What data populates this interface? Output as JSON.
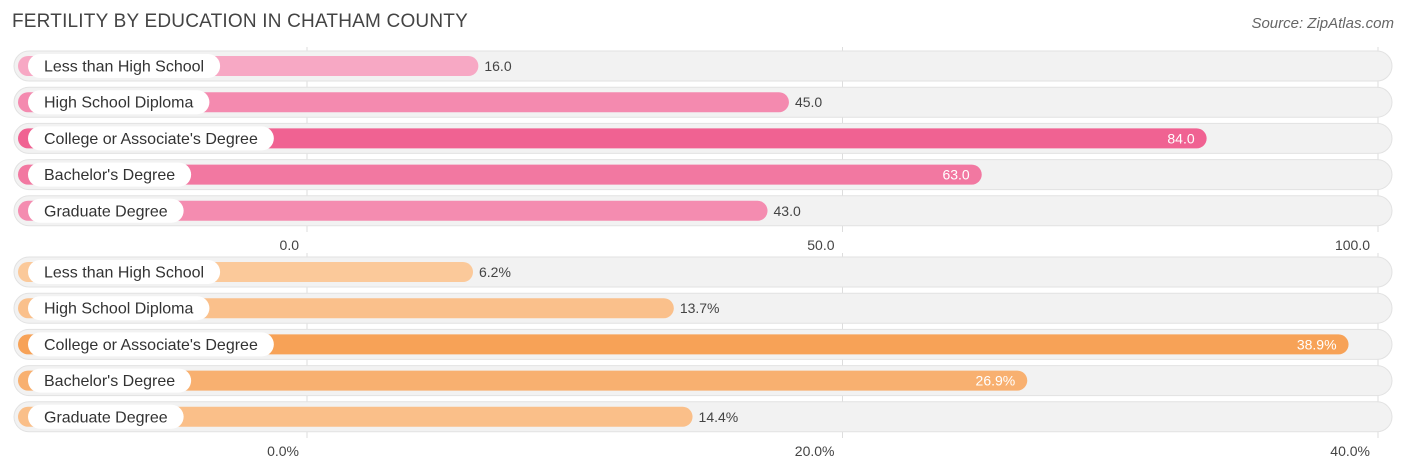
{
  "header": {
    "title": "FERTILITY BY EDUCATION IN CHATHAM COUNTY",
    "source": "Source: ZipAtlas.com"
  },
  "chart_data": [
    {
      "type": "bar",
      "orientation": "horizontal",
      "categories": [
        "Less than High School",
        "High School Diploma",
        "College or Associate's Degree",
        "Bachelor's Degree",
        "Graduate Degree"
      ],
      "values": [
        16.0,
        45.0,
        84.0,
        63.0,
        43.0
      ],
      "value_labels": [
        "16.0",
        "45.0",
        "84.0",
        "63.0",
        "43.0"
      ],
      "xlim": [
        0,
        100
      ],
      "ticks": [
        0,
        50,
        100
      ],
      "tick_labels": [
        "0.0",
        "50.0",
        "100.0"
      ],
      "colors": {
        "light": "#f7a8c4",
        "dark": "#f06292"
      }
    },
    {
      "type": "bar",
      "orientation": "horizontal",
      "categories": [
        "Less than High School",
        "High School Diploma",
        "College or Associate's Degree",
        "Bachelor's Degree",
        "Graduate Degree"
      ],
      "values": [
        6.2,
        13.7,
        38.9,
        26.9,
        14.4
      ],
      "value_labels": [
        "6.2%",
        "13.7%",
        "38.9%",
        "26.9%",
        "14.4%"
      ],
      "xlim": [
        0,
        40
      ],
      "ticks": [
        0,
        20,
        40
      ],
      "tick_labels": [
        "0.0%",
        "20.0%",
        "40.0%"
      ],
      "colors": {
        "light": "#fbc99a",
        "dark": "#f7a257"
      }
    }
  ]
}
